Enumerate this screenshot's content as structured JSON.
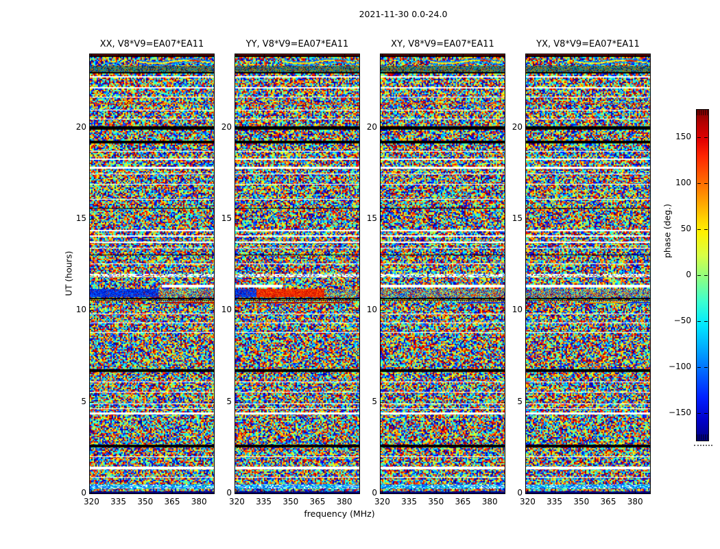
{
  "figure_title": "2021-11-30 0.0-24.0",
  "chart_data": {
    "type": "heatmap",
    "title": "2021-11-30 0.0-24.0",
    "xlabel": "frequency (MHz)",
    "ylabel": "UT (hours)",
    "x_range_mhz": [
      319,
      389
    ],
    "y_range_hours": [
      0,
      24
    ],
    "x_ticks": [
      320,
      335,
      350,
      365,
      380
    ],
    "y_ticks": [
      0,
      5,
      10,
      15,
      20
    ],
    "x_tick_labels": [
      "320",
      "335",
      "350",
      "365",
      "380"
    ],
    "y_tick_labels": [
      "0",
      "5",
      "10",
      "15",
      "20"
    ],
    "subplots": [
      {
        "pol": "XX",
        "title": "XX, V8*V9=EA07*EA11"
      },
      {
        "pol": "YY",
        "title": "YY, V8*V9=EA07*EA11"
      },
      {
        "pol": "XY",
        "title": "XY, V8*V9=EA07*EA11"
      },
      {
        "pol": "YX",
        "title": "YX, V8*V9=EA07*EA11"
      }
    ],
    "colorbar": {
      "label": "phase (deg.)",
      "range_deg": [
        -180,
        180
      ],
      "ticks": [
        150,
        100,
        50,
        0,
        -50,
        -100,
        -150
      ],
      "tick_labels": [
        "150",
        "100",
        "50",
        "0",
        "−50",
        "−100",
        "−150"
      ],
      "colormap": "jet"
    },
    "description": "Visibility phase vs frequency (x) and UT time (y) for baseline V8*V9 = EA07*EA11 on 2021-11-30, four polarization products. Unwrapped random phase noise with jet colormap; horizontal flagged rows (white/black); coherent phase band near UT 10.7-11.2 (blue in XX, red in YY); interference fringe swirl near UT 23.5 top of each panel.",
    "features": {
      "flagged_rows": [
        [
          23.93,
          24.0,
          "dr"
        ],
        [
          23.85,
          23.93,
          "k"
        ],
        [
          22.95,
          23.02,
          "k"
        ],
        [
          22.72,
          22.8,
          "w"
        ],
        [
          22.12,
          22.2,
          "w"
        ],
        [
          21.63,
          21.68,
          "w"
        ],
        [
          21.26,
          21.34,
          "rs"
        ],
        [
          20.92,
          20.97,
          "w"
        ],
        [
          20.44,
          20.49,
          "w"
        ],
        [
          19.88,
          20.07,
          "k"
        ],
        [
          19.12,
          19.28,
          "k"
        ],
        [
          18.67,
          18.72,
          "w"
        ],
        [
          18.22,
          18.3,
          "w"
        ],
        [
          17.73,
          17.86,
          "w"
        ],
        [
          17.43,
          17.48,
          "w"
        ],
        [
          16.87,
          16.92,
          "w"
        ],
        [
          16.04,
          16.09,
          "w"
        ],
        [
          15.55,
          15.6,
          "k"
        ],
        [
          14.32,
          14.4,
          "w"
        ],
        [
          14.02,
          14.1,
          "w"
        ],
        [
          13.68,
          13.76,
          "w"
        ],
        [
          13.38,
          13.43,
          "w"
        ],
        [
          13.0,
          13.05,
          "k"
        ],
        [
          12.52,
          12.57,
          "w"
        ],
        [
          11.81,
          12.0,
          "sw"
        ],
        [
          11.25,
          11.4,
          "pw"
        ],
        [
          10.73,
          11.18,
          "bd"
        ],
        [
          10.6,
          10.7,
          "k"
        ],
        [
          10.49,
          10.58,
          "dot"
        ],
        [
          9.78,
          9.83,
          "w"
        ],
        [
          9.29,
          9.34,
          "w"
        ],
        [
          8.77,
          8.82,
          "w"
        ],
        [
          6.63,
          6.79,
          "k"
        ],
        [
          6.07,
          6.12,
          "w"
        ],
        [
          5.5,
          5.55,
          "w"
        ],
        [
          4.87,
          4.92,
          "w"
        ],
        [
          4.6,
          4.65,
          "w"
        ],
        [
          4.3,
          4.43,
          "w"
        ],
        [
          2.5,
          2.66,
          "k"
        ],
        [
          1.98,
          2.03,
          "w"
        ],
        [
          1.3,
          1.46,
          "w"
        ],
        [
          0.85,
          0.9,
          "w"
        ],
        [
          0.25,
          0.49,
          "cs"
        ],
        [
          0.0,
          0.12,
          "nv"
        ]
      ],
      "band_configs": {
        "XX": {
          "preband": [
            0.58,
            1.0
          ],
          "segments": [
            [
              0,
              0.55,
              "blue"
            ],
            [
              0.55,
              1,
              "checker"
            ]
          ],
          "accents": [
            [
              0.55,
              1.0,
              "#b31500"
            ]
          ]
        },
        "YY": {
          "preband": [
            0.0,
            0.38
          ],
          "segments": [
            [
              0,
              0.17,
              "blue"
            ],
            [
              0.17,
              0.72,
              "red"
            ],
            [
              0.72,
              1,
              "checker"
            ]
          ],
          "accents": [
            [
              0.12,
              0.92,
              "#b31500"
            ]
          ]
        },
        "XY": {
          "preband": [
            0,
            1
          ],
          "segments": [
            [
              0,
              1,
              "checker"
            ]
          ],
          "accents": [
            [
              0.62,
              1,
              "#1540d8"
            ]
          ]
        },
        "YX": {
          "preband": [
            0,
            1
          ],
          "segments": [
            [
              0,
              1,
              "checker"
            ]
          ],
          "accents": [
            [
              0.5,
              0.82,
              "#e0a800"
            ],
            [
              0.82,
              1,
              "#1540d8"
            ]
          ]
        }
      }
    }
  }
}
